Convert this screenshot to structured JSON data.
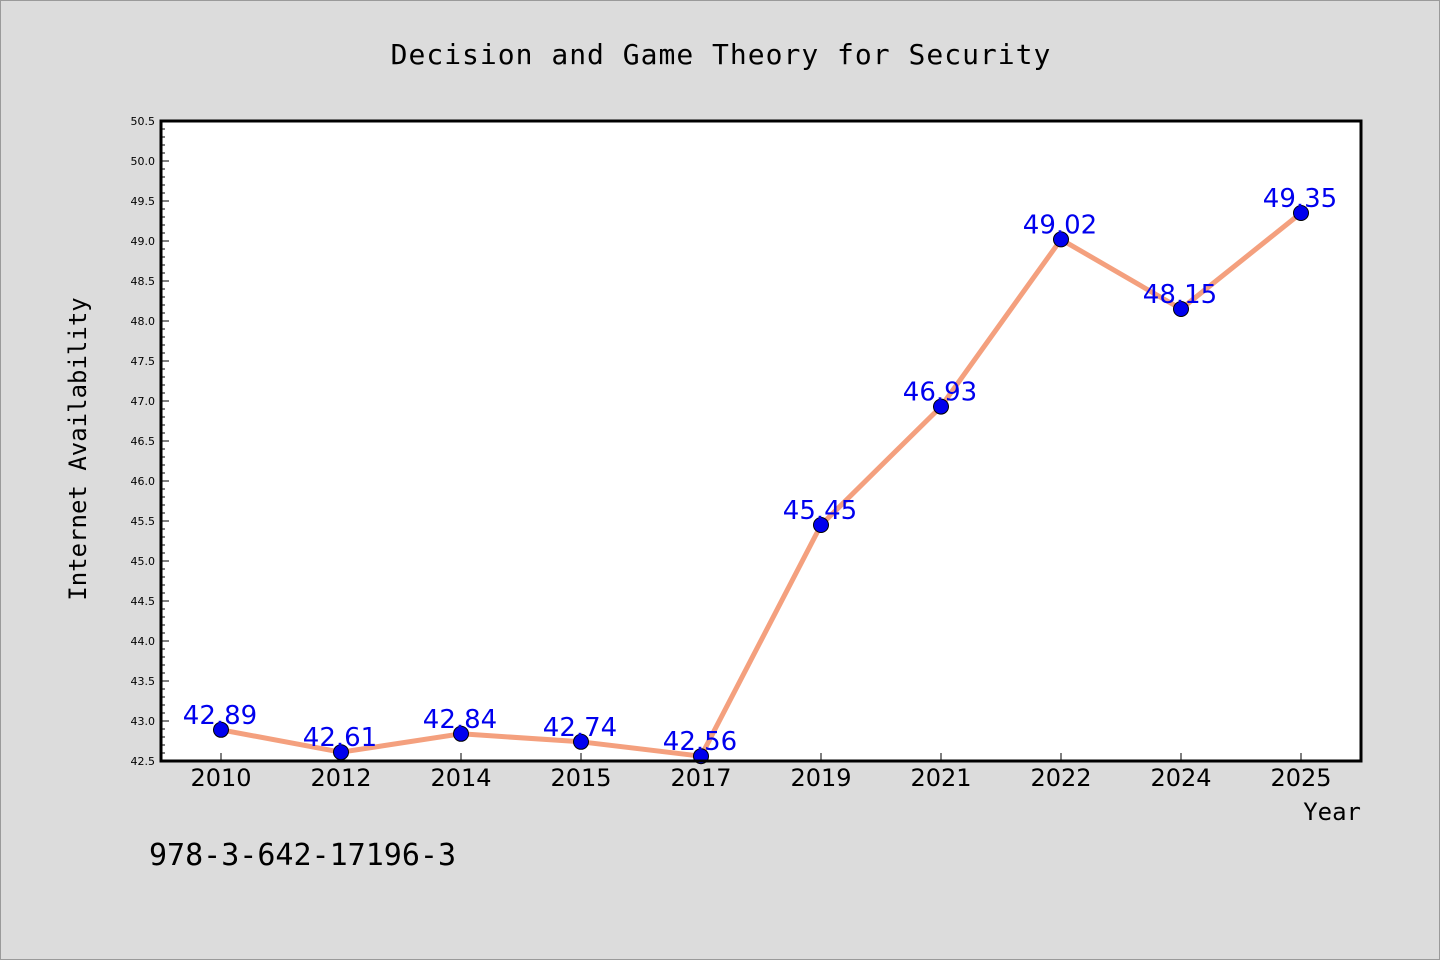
{
  "chart_data": {
    "type": "line",
    "title": "Decision and Game Theory for Security",
    "xlabel": "Year",
    "ylabel": "Internet Availability",
    "categories": [
      "2010",
      "2012",
      "2014",
      "2015",
      "2017",
      "2019",
      "2021",
      "2022",
      "2024",
      "2025"
    ],
    "series": [
      {
        "values": [
          42.89,
          42.61,
          42.84,
          42.74,
          42.56,
          45.45,
          46.93,
          49.02,
          48.15,
          49.35
        ]
      }
    ],
    "data_labels": [
      "42.89",
      "42.61",
      "42.84",
      "42.74",
      "42.56",
      "45.45",
      "46.93",
      "49.02",
      "48.15",
      "49.35"
    ],
    "ylim": [
      42.5,
      50.5
    ],
    "yticks": [
      "42.5",
      "43.0",
      "43.5",
      "44.0",
      "44.5",
      "45.0",
      "45.5",
      "46.0",
      "46.5",
      "47.0",
      "47.5",
      "48.0",
      "48.5",
      "49.0",
      "49.5",
      "50.0",
      "50.5"
    ],
    "grid": false,
    "legend": "none",
    "colors": {
      "line": "#f4a07e",
      "marker": "#0000ee",
      "data_label": "#0000ee",
      "plot_background": "#ffffff",
      "figure_background": "#dcdcdc"
    }
  },
  "footnote": "978-3-642-17196-3"
}
